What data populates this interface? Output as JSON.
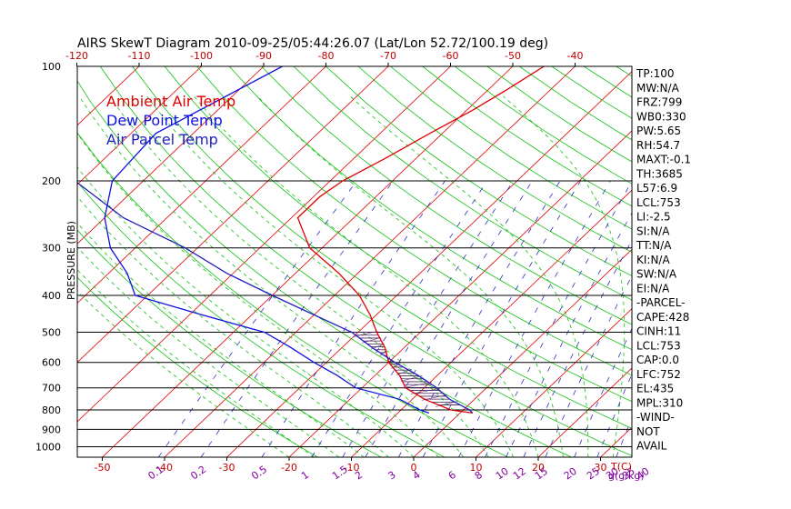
{
  "chart_data": {
    "type": "line",
    "title": "AIRS SkewT Diagram 2010-09-25/05:44:26.07 (Lat/Lon 52.72/100.19 deg)",
    "ylabel": "PRESSURE (MB)",
    "xlabel": "T(C)",
    "mixing_ratio_label": "g(g/kg)",
    "pressure_ticks": [
      100,
      200,
      300,
      400,
      500,
      600,
      700,
      800,
      900,
      1000
    ],
    "top_temp_ticks": [
      -120,
      -110,
      -100,
      -90,
      -80,
      -70,
      -60,
      -50,
      -40
    ],
    "bottom_temp_ticks": [
      -50,
      -40,
      -30,
      -20,
      -10,
      0,
      10,
      20,
      30
    ],
    "mixing_ratio_ticks": [
      "0.1",
      "0.2",
      "0.5",
      "1",
      "1.5",
      "2",
      "3",
      "4",
      "6",
      "8",
      "10",
      "12",
      "15",
      "20",
      "25",
      "30",
      "35",
      "40"
    ],
    "legend": [
      {
        "label": "Ambient Air Temp",
        "color": "#e00000"
      },
      {
        "label": "Dew Point Temp",
        "color": "#1010e0"
      },
      {
        "label": "Air Parcel Temp",
        "color": "#2020c0"
      }
    ],
    "series": [
      {
        "name": "Ambient Air Temp",
        "color": "#e00000",
        "points": [
          [
            100,
            -45
          ],
          [
            115,
            -47
          ],
          [
            130,
            -49
          ],
          [
            150,
            -52
          ],
          [
            175,
            -55
          ],
          [
            200,
            -58
          ],
          [
            220,
            -59
          ],
          [
            250,
            -59
          ],
          [
            300,
            -52
          ],
          [
            350,
            -43
          ],
          [
            400,
            -36
          ],
          [
            450,
            -31
          ],
          [
            500,
            -27
          ],
          [
            550,
            -23
          ],
          [
            600,
            -20
          ],
          [
            650,
            -16
          ],
          [
            700,
            -13
          ],
          [
            750,
            -8
          ],
          [
            800,
            -2
          ],
          [
            815,
            2
          ]
        ]
      },
      {
        "name": "Dew Point Temp",
        "color": "#1010e0",
        "points": [
          [
            100,
            -87
          ],
          [
            150,
            -96
          ],
          [
            200,
            -95
          ],
          [
            250,
            -90
          ],
          [
            300,
            -84
          ],
          [
            350,
            -77
          ],
          [
            400,
            -72
          ],
          [
            450,
            -58
          ],
          [
            500,
            -45
          ],
          [
            550,
            -38
          ],
          [
            600,
            -32
          ],
          [
            650,
            -26
          ],
          [
            700,
            -21
          ],
          [
            750,
            -12
          ],
          [
            800,
            -7
          ],
          [
            815,
            -5
          ]
        ]
      },
      {
        "name": "Air Parcel Temp",
        "color": "#2020c0",
        "points": [
          [
            100,
            -132
          ],
          [
            150,
            -117
          ],
          [
            200,
            -101
          ],
          [
            250,
            -87
          ],
          [
            300,
            -72
          ],
          [
            350,
            -61
          ],
          [
            400,
            -50
          ],
          [
            450,
            -40
          ],
          [
            500,
            -31
          ],
          [
            550,
            -25
          ],
          [
            600,
            -19
          ],
          [
            650,
            -13
          ],
          [
            700,
            -8
          ],
          [
            750,
            -4
          ],
          [
            800,
            1
          ],
          [
            815,
            2
          ]
        ]
      }
    ],
    "indices": [
      "TP:100",
      "MW:N/A",
      "FRZ:799",
      "WB0:330",
      "PW:5.65",
      "RH:54.7",
      "MAXT:-0.1",
      "TH:3685",
      "L57:6.9",
      "LCL:753",
      "LI:-2.5",
      "SI:N/A",
      "TT:N/A",
      "KI:N/A",
      "SW:N/A",
      "EI:N/A",
      "-PARCEL-",
      "CAPE:428",
      "CINH:11",
      "LCL:753",
      "CAP:0.0",
      "LFC:752",
      "EL:435",
      "MPL:310",
      "-WIND-",
      "NOT",
      "AVAIL"
    ]
  },
  "colors": {
    "isotherm": "#e00000",
    "dry_adiabat": "#10c010",
    "moist_adiabat": "#10c010",
    "mixing_ratio": "#3030c0",
    "mixing_label": "#8000a0",
    "temp_label": "#c00000",
    "pressure_line": "#000000"
  }
}
